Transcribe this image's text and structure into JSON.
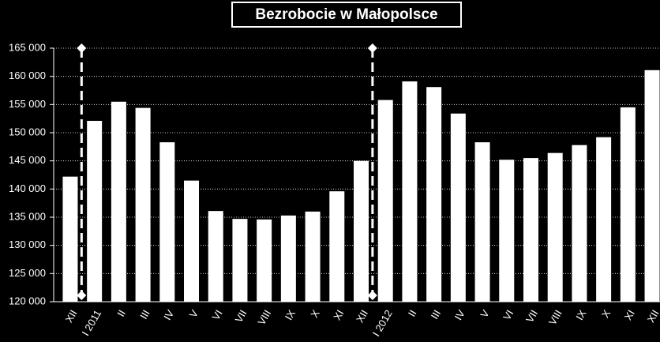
{
  "chart_data": {
    "type": "bar",
    "title": "Bezrobocie w Małopolsce",
    "categories": [
      "XII",
      "I 2011",
      "II",
      "III",
      "IV",
      "V",
      "VI",
      "VII",
      "VIII",
      "IX",
      "X",
      "XI",
      "XII",
      "I 2012",
      "II",
      "III",
      "IV",
      "V",
      "VI",
      "VII",
      "VIII",
      "IX",
      "X",
      "XI",
      "XII"
    ],
    "values": [
      142200,
      152100,
      155500,
      154400,
      148300,
      141500,
      136100,
      134700,
      134600,
      135300,
      136000,
      139600,
      145000,
      155800,
      159100,
      158100,
      153400,
      148300,
      145200,
      145500,
      146400,
      147800,
      149200,
      154500,
      161100
    ],
    "color": "#ffffff",
    "ylim": [
      120000,
      165000
    ],
    "yticks": [
      {
        "value": 120000,
        "label": "120 000"
      },
      {
        "value": 125000,
        "label": "125 000"
      },
      {
        "value": 130000,
        "label": "130 000"
      },
      {
        "value": 135000,
        "label": "135 000"
      },
      {
        "value": 140000,
        "label": "140 000"
      },
      {
        "value": 145000,
        "label": "145 000"
      },
      {
        "value": 150000,
        "label": "150 000"
      },
      {
        "value": 155000,
        "label": "155 000"
      },
      {
        "value": 160000,
        "label": "160 000"
      },
      {
        "value": 165000,
        "label": "165 000"
      }
    ],
    "grid": true
  }
}
